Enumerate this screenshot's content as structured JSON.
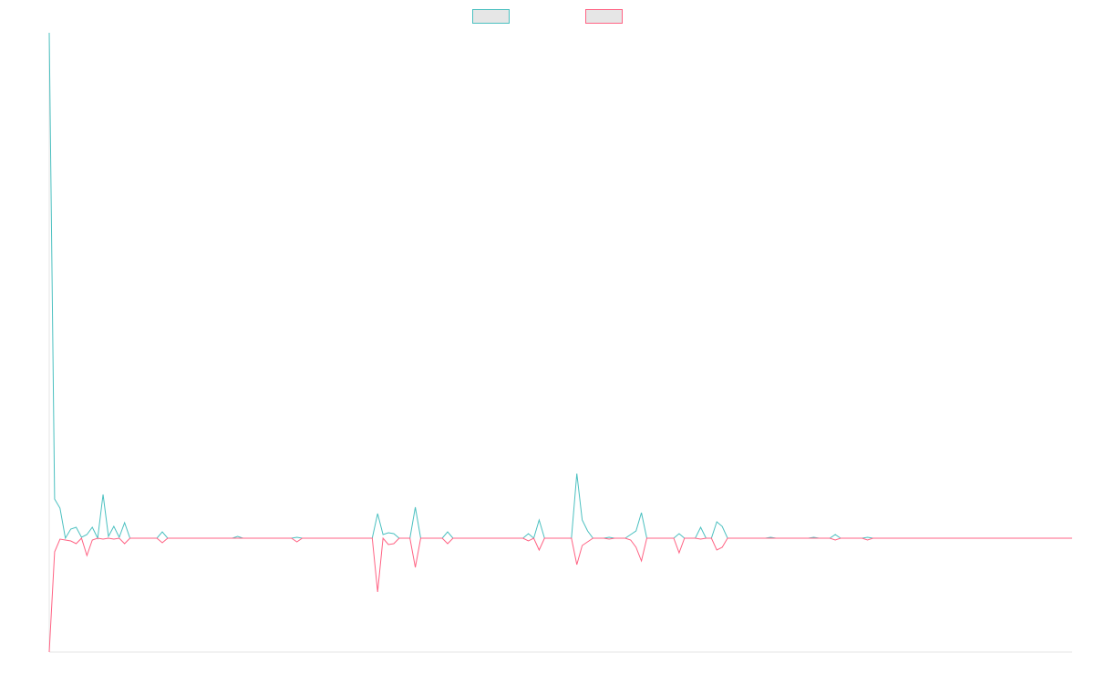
{
  "chart_data": {
    "type": "line",
    "legend": "top",
    "xlim": [
      0,
      190
    ],
    "ylim": [
      -1.25,
      5.55
    ],
    "x": [
      0,
      1,
      2,
      3,
      4,
      5,
      6,
      7,
      8,
      9,
      10,
      11,
      12,
      13,
      14,
      15,
      16,
      17,
      18,
      19,
      20,
      21,
      22,
      23,
      24,
      25,
      26,
      27,
      28,
      29,
      30,
      31,
      32,
      33,
      34,
      35,
      36,
      37,
      38,
      39,
      40,
      41,
      42,
      43,
      44,
      45,
      46,
      47,
      48,
      49,
      50,
      51,
      52,
      53,
      54,
      55,
      56,
      57,
      58,
      59,
      60,
      61,
      62,
      63,
      64,
      65,
      66,
      67,
      68,
      69,
      70,
      71,
      72,
      73,
      74,
      75,
      76,
      77,
      78,
      79,
      80,
      81,
      82,
      83,
      84,
      85,
      86,
      87,
      88,
      89,
      90,
      91,
      92,
      93,
      94,
      95,
      96,
      97,
      98,
      99,
      100,
      101,
      102,
      103,
      104,
      105,
      106,
      107,
      108,
      109,
      110,
      111,
      112,
      113,
      114,
      115,
      116,
      117,
      118,
      119,
      120,
      121,
      122,
      123,
      124,
      125,
      126,
      127,
      128,
      129,
      130,
      131,
      132,
      133,
      134,
      135,
      136,
      137,
      138,
      139,
      140,
      141,
      142,
      143,
      144,
      145,
      146,
      147,
      148,
      149,
      150,
      151,
      152,
      153,
      154,
      155,
      156,
      157,
      158,
      159,
      160,
      161,
      162,
      163,
      164,
      165,
      166,
      167,
      168,
      169,
      170,
      171,
      172,
      173,
      174,
      175,
      176,
      177,
      178,
      179,
      180,
      181,
      182,
      183,
      184,
      185,
      186,
      187,
      188,
      189,
      190
    ],
    "series": [
      {
        "color": "#4bc0c0",
        "values": [
          5.55,
          0.43,
          0.33,
          0,
          0.1,
          0.12,
          0.01,
          0.04,
          0.12,
          0,
          0.48,
          0.02,
          0.13,
          0.01,
          0.17,
          0,
          0,
          0,
          0,
          0,
          0,
          0.07,
          0,
          0,
          0,
          0,
          0,
          0,
          0,
          0,
          0,
          0,
          0,
          0,
          0,
          0.02,
          0,
          0,
          0,
          0,
          0,
          0,
          0,
          0,
          0,
          0,
          0.01,
          0,
          0,
          0,
          0,
          0,
          0,
          0,
          0,
          0,
          0,
          0,
          0,
          0,
          0,
          0.27,
          0.04,
          0.06,
          0.05,
          0,
          0,
          0,
          0.34,
          0,
          0,
          0,
          0,
          0,
          0.07,
          0,
          0,
          0,
          0,
          0,
          0,
          0,
          0,
          0,
          0,
          0,
          0,
          0,
          0,
          0.05,
          0,
          0.2,
          0,
          0,
          0,
          0,
          0,
          0,
          0.71,
          0.2,
          0.08,
          0,
          0,
          0,
          0.01,
          0,
          0,
          0,
          0.04,
          0.08,
          0.28,
          0,
          0,
          0,
          0,
          0,
          0,
          0.05,
          0,
          0,
          0,
          0.12,
          0,
          0,
          0.18,
          0.13,
          0,
          0,
          0,
          0,
          0,
          0,
          0,
          0,
          0.01,
          0,
          0,
          0,
          0,
          0,
          0,
          0,
          0.01,
          0,
          0,
          0,
          0.04,
          0,
          0,
          0,
          0,
          0,
          0.01,
          0,
          0,
          0,
          0,
          0,
          0,
          0,
          0,
          0,
          0,
          0,
          0,
          0,
          0,
          0,
          0,
          0,
          0,
          0,
          0,
          0,
          0,
          0,
          0,
          0,
          0,
          0,
          0,
          0,
          0,
          0,
          0,
          0,
          0,
          0,
          0,
          0,
          0
        ]
      },
      {
        "color": "#ff6384",
        "values": [
          -1.25,
          -0.15,
          -0.01,
          -0.02,
          -0.03,
          -0.06,
          0,
          -0.19,
          -0.02,
          0,
          -0.01,
          0,
          -0.01,
          0,
          -0.06,
          0,
          0,
          0,
          0,
          0,
          0,
          -0.05,
          0,
          0,
          0,
          0,
          0,
          0,
          0,
          0,
          0,
          0,
          0,
          0,
          0,
          0,
          0,
          0,
          0,
          0,
          0,
          0,
          0,
          0,
          0,
          0,
          -0.04,
          0,
          0,
          0,
          0,
          0,
          0,
          0,
          0,
          0,
          0,
          0,
          0,
          0,
          0,
          -0.59,
          0,
          -0.07,
          -0.06,
          0,
          0,
          0,
          -0.32,
          0,
          0,
          0,
          0,
          0,
          -0.06,
          0,
          0,
          0,
          0,
          0,
          0,
          0,
          0,
          0,
          0,
          0,
          0,
          0,
          0,
          -0.03,
          0,
          -0.13,
          0,
          0,
          0,
          0,
          0,
          0,
          -0.29,
          -0.08,
          -0.04,
          0,
          0,
          0,
          -0.01,
          0,
          0,
          0,
          -0.02,
          -0.1,
          -0.25,
          0,
          0,
          0,
          0,
          0,
          0,
          -0.16,
          0,
          0,
          0,
          -0.01,
          0,
          0,
          -0.13,
          -0.1,
          0,
          0,
          0,
          0,
          0,
          0,
          0,
          0,
          0,
          0,
          0,
          0,
          0,
          0,
          0,
          0,
          0,
          0,
          0,
          0,
          -0.02,
          0,
          0,
          0,
          0,
          0,
          -0.02,
          0,
          0,
          0,
          0,
          0,
          0,
          0,
          0,
          0,
          0,
          0,
          0,
          0,
          0,
          0,
          0,
          0,
          0,
          0,
          0,
          0,
          0,
          0,
          0,
          0,
          0,
          0,
          0,
          0,
          0,
          0,
          0,
          0,
          0,
          0,
          0,
          0,
          0
        ]
      }
    ]
  }
}
